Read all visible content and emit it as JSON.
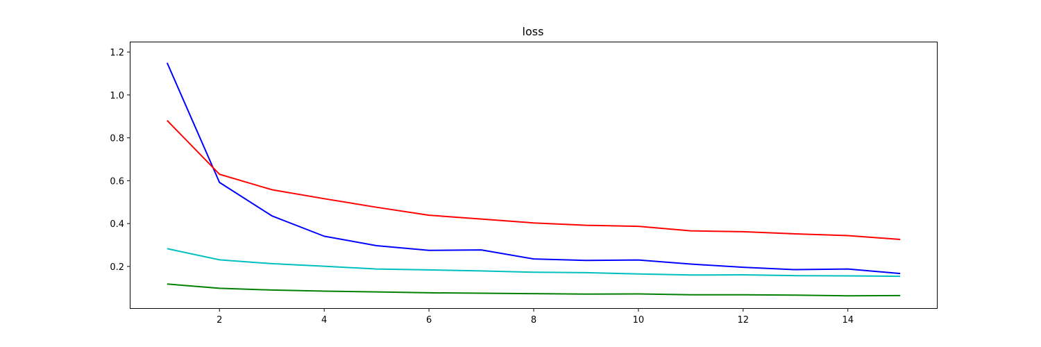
{
  "chart_data": {
    "type": "line",
    "title": "loss",
    "xlabel": "",
    "ylabel": "",
    "x": [
      1,
      2,
      3,
      4,
      5,
      6,
      7,
      8,
      9,
      10,
      11,
      12,
      13,
      14,
      15
    ],
    "xlim": [
      0.3,
      15.7
    ],
    "ylim": [
      0.0055,
      1.2455
    ],
    "x_ticks": [
      2,
      4,
      6,
      8,
      10,
      12,
      14
    ],
    "y_ticks": [
      0.2,
      0.4,
      0.6,
      0.8,
      1.0,
      1.2
    ],
    "x_tick_labels": [
      "2",
      "4",
      "6",
      "8",
      "10",
      "12",
      "14"
    ],
    "y_tick_labels": [
      "0.2",
      "0.4",
      "0.6",
      "0.8",
      "1.0",
      "1.2"
    ],
    "grid": false,
    "series": [
      {
        "color": "#0000ff",
        "values": [
          1.15,
          0.592,
          0.436,
          0.341,
          0.297,
          0.275,
          0.277,
          0.235,
          0.228,
          0.23,
          0.211,
          0.196,
          0.185,
          0.188,
          0.167
        ]
      },
      {
        "color": "#ff0000",
        "values": [
          0.881,
          0.63,
          0.558,
          0.516,
          0.476,
          0.439,
          0.421,
          0.403,
          0.392,
          0.387,
          0.366,
          0.362,
          0.352,
          0.344,
          0.326
        ]
      },
      {
        "color": "#00bfbf",
        "values": [
          0.283,
          0.231,
          0.213,
          0.201,
          0.188,
          0.184,
          0.179,
          0.173,
          0.171,
          0.165,
          0.16,
          0.161,
          0.157,
          0.156,
          0.154
        ]
      },
      {
        "color": "#008000",
        "values": [
          0.118,
          0.098,
          0.09,
          0.085,
          0.081,
          0.077,
          0.075,
          0.073,
          0.071,
          0.072,
          0.068,
          0.068,
          0.066,
          0.063,
          0.064
        ]
      }
    ]
  }
}
